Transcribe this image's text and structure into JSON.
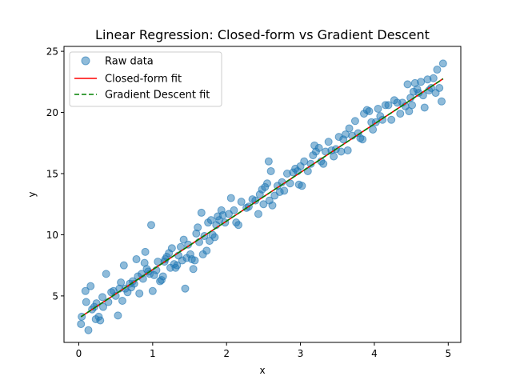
{
  "chart_data": {
    "type": "scatter",
    "title": "Linear Regression: Closed-form vs Gradient Descent",
    "xlabel": "x",
    "ylabel": "y",
    "xlim": [
      -0.2,
      5.17
    ],
    "ylim": [
      1.2,
      25.4
    ],
    "xticks": [
      0,
      1,
      2,
      3,
      4,
      5
    ],
    "yticks": [
      5,
      10,
      15,
      20,
      25
    ],
    "grid": false,
    "legend_position": "upper-left",
    "series": [
      {
        "name": "Raw data",
        "kind": "scatter",
        "color": "#1f77b4",
        "points": [
          [
            0.03,
            2.7
          ],
          [
            0.04,
            3.3
          ],
          [
            0.09,
            5.4
          ],
          [
            0.1,
            4.5
          ],
          [
            0.13,
            2.2
          ],
          [
            0.16,
            5.8
          ],
          [
            0.18,
            3.9
          ],
          [
            0.21,
            4.1
          ],
          [
            0.23,
            3.1
          ],
          [
            0.24,
            4.4
          ],
          [
            0.27,
            3.3
          ],
          [
            0.29,
            3.0
          ],
          [
            0.32,
            4.9
          ],
          [
            0.33,
            4.1
          ],
          [
            0.37,
            6.8
          ],
          [
            0.4,
            4.5
          ],
          [
            0.44,
            5.3
          ],
          [
            0.47,
            5.4
          ],
          [
            0.5,
            5.0
          ],
          [
            0.53,
            3.4
          ],
          [
            0.55,
            5.6
          ],
          [
            0.57,
            6.1
          ],
          [
            0.59,
            4.6
          ],
          [
            0.61,
            7.5
          ],
          [
            0.63,
            5.6
          ],
          [
            0.66,
            5.3
          ],
          [
            0.69,
            6.0
          ],
          [
            0.71,
            5.7
          ],
          [
            0.73,
            6.2
          ],
          [
            0.75,
            6.0
          ],
          [
            0.78,
            8.0
          ],
          [
            0.8,
            6.6
          ],
          [
            0.82,
            5.2
          ],
          [
            0.85,
            6.8
          ],
          [
            0.87,
            6.4
          ],
          [
            0.89,
            7.7
          ],
          [
            0.9,
            8.6
          ],
          [
            0.92,
            7.2
          ],
          [
            0.94,
            7.0
          ],
          [
            0.96,
            6.8
          ],
          [
            0.98,
            10.8
          ],
          [
            1.0,
            5.4
          ],
          [
            1.02,
            6.7
          ],
          [
            1.05,
            7.1
          ],
          [
            1.07,
            7.8
          ],
          [
            1.1,
            6.2
          ],
          [
            1.12,
            6.3
          ],
          [
            1.14,
            6.6
          ],
          [
            1.16,
            7.8
          ],
          [
            1.17,
            8.0
          ],
          [
            1.19,
            8.2
          ],
          [
            1.22,
            8.5
          ],
          [
            1.24,
            7.3
          ],
          [
            1.26,
            8.9
          ],
          [
            1.29,
            7.6
          ],
          [
            1.31,
            7.3
          ],
          [
            1.33,
            7.5
          ],
          [
            1.35,
            8.3
          ],
          [
            1.38,
            9.0
          ],
          [
            1.4,
            7.9
          ],
          [
            1.42,
            9.6
          ],
          [
            1.44,
            5.6
          ],
          [
            1.46,
            8.1
          ],
          [
            1.48,
            9.2
          ],
          [
            1.51,
            8.4
          ],
          [
            1.53,
            8.0
          ],
          [
            1.55,
            7.2
          ],
          [
            1.57,
            7.9
          ],
          [
            1.59,
            10.1
          ],
          [
            1.61,
            10.6
          ],
          [
            1.63,
            9.4
          ],
          [
            1.66,
            11.8
          ],
          [
            1.68,
            8.4
          ],
          [
            1.7,
            9.9
          ],
          [
            1.73,
            8.7
          ],
          [
            1.75,
            11.0
          ],
          [
            1.77,
            9.5
          ],
          [
            1.79,
            11.2
          ],
          [
            1.81,
            10.0
          ],
          [
            1.84,
            9.8
          ],
          [
            1.86,
            10.8
          ],
          [
            1.88,
            11.5
          ],
          [
            1.9,
            11.2
          ],
          [
            1.93,
            12.0
          ],
          [
            1.95,
            11.6
          ],
          [
            1.98,
            11.0
          ],
          [
            2.03,
            11.7
          ],
          [
            2.06,
            13.0
          ],
          [
            2.1,
            12.0
          ],
          [
            2.13,
            11.0
          ],
          [
            2.16,
            10.8
          ],
          [
            2.2,
            12.7
          ],
          [
            2.27,
            12.2
          ],
          [
            2.3,
            12.3
          ],
          [
            2.35,
            12.9
          ],
          [
            2.39,
            12.8
          ],
          [
            2.43,
            11.7
          ],
          [
            2.45,
            13.3
          ],
          [
            2.48,
            13.7
          ],
          [
            2.5,
            12.5
          ],
          [
            2.52,
            13.9
          ],
          [
            2.55,
            14.2
          ],
          [
            2.57,
            16.0
          ],
          [
            2.58,
            12.8
          ],
          [
            2.6,
            15.2
          ],
          [
            2.62,
            12.4
          ],
          [
            2.65,
            13.2
          ],
          [
            2.69,
            14.0
          ],
          [
            2.72,
            13.5
          ],
          [
            2.75,
            14.3
          ],
          [
            2.78,
            13.6
          ],
          [
            2.82,
            15.0
          ],
          [
            2.86,
            14.2
          ],
          [
            2.9,
            15.1
          ],
          [
            2.93,
            15.4
          ],
          [
            2.96,
            15.2
          ],
          [
            2.98,
            14.1
          ],
          [
            3.0,
            15.6
          ],
          [
            3.02,
            14.0
          ],
          [
            3.05,
            16.0
          ],
          [
            3.1,
            15.2
          ],
          [
            3.14,
            15.8
          ],
          [
            3.17,
            16.5
          ],
          [
            3.19,
            17.3
          ],
          [
            3.21,
            16.8
          ],
          [
            3.25,
            17.1
          ],
          [
            3.28,
            16.0
          ],
          [
            3.31,
            15.8
          ],
          [
            3.34,
            16.8
          ],
          [
            3.38,
            17.6
          ],
          [
            3.42,
            16.9
          ],
          [
            3.45,
            16.4
          ],
          [
            3.48,
            17.0
          ],
          [
            3.52,
            18.0
          ],
          [
            3.55,
            16.8
          ],
          [
            3.58,
            17.8
          ],
          [
            3.61,
            18.2
          ],
          [
            3.64,
            16.9
          ],
          [
            3.66,
            18.7
          ],
          [
            3.7,
            18.1
          ],
          [
            3.74,
            19.3
          ],
          [
            3.78,
            18.3
          ],
          [
            3.81,
            17.9
          ],
          [
            3.84,
            17.8
          ],
          [
            3.86,
            19.9
          ],
          [
            3.9,
            20.2
          ],
          [
            3.93,
            20.1
          ],
          [
            3.96,
            19.2
          ],
          [
            3.98,
            18.6
          ],
          [
            4.02,
            19.2
          ],
          [
            4.05,
            20.3
          ],
          [
            4.08,
            19.7
          ],
          [
            4.11,
            19.4
          ],
          [
            4.15,
            20.6
          ],
          [
            4.19,
            20.6
          ],
          [
            4.23,
            19.4
          ],
          [
            4.27,
            21.0
          ],
          [
            4.31,
            20.8
          ],
          [
            4.35,
            19.9
          ],
          [
            4.38,
            20.8
          ],
          [
            4.42,
            20.5
          ],
          [
            4.45,
            22.3
          ],
          [
            4.47,
            20.1
          ],
          [
            4.49,
            21.2
          ],
          [
            4.51,
            20.6
          ],
          [
            4.53,
            21.7
          ],
          [
            4.55,
            22.4
          ],
          [
            4.58,
            21.9
          ],
          [
            4.6,
            21.6
          ],
          [
            4.63,
            22.5
          ],
          [
            4.66,
            21.4
          ],
          [
            4.68,
            20.4
          ],
          [
            4.72,
            22.7
          ],
          [
            4.74,
            21.8
          ],
          [
            4.77,
            22.0
          ],
          [
            4.8,
            22.8
          ],
          [
            4.83,
            21.6
          ],
          [
            4.85,
            23.5
          ],
          [
            4.88,
            22.0
          ],
          [
            4.91,
            20.9
          ],
          [
            4.93,
            24.0
          ]
        ]
      },
      {
        "name": "Closed-form fit",
        "kind": "line",
        "color": "#ff0000",
        "dash": "solid",
        "intercept": 3.18,
        "slope": 3.97,
        "x_range": [
          0.03,
          4.93
        ]
      },
      {
        "name": "Gradient Descent fit",
        "kind": "line",
        "color": "#008000",
        "dash": "dashed",
        "intercept": 3.18,
        "slope": 3.97,
        "x_range": [
          0.03,
          4.93
        ]
      }
    ]
  }
}
